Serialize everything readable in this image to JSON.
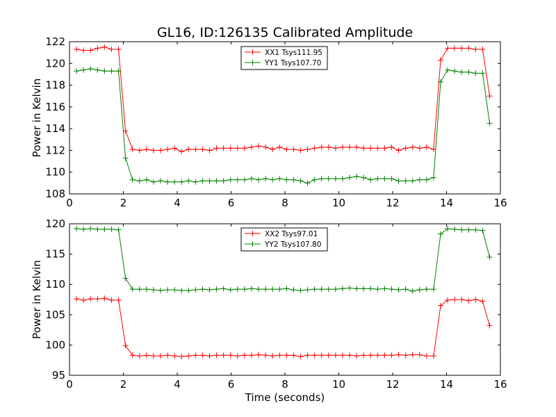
{
  "figure": {
    "title": "GL16, ID:126135 Calibrated Amplitude"
  },
  "chart_data": [
    {
      "type": "line",
      "title": "GL16, ID:126135 Calibrated Amplitude",
      "xlabel": "",
      "ylabel": "Power in Kelvin",
      "xlim": [
        0,
        16
      ],
      "ylim": [
        108,
        122
      ],
      "xticks": [
        "0",
        "2",
        "4",
        "6",
        "8",
        "10",
        "12",
        "14",
        "16"
      ],
      "yticks": [
        "108",
        "110",
        "112",
        "114",
        "116",
        "118",
        "120",
        "122"
      ],
      "grid": false,
      "legend_position": "top-center",
      "x": [
        0.26,
        0.52,
        0.78,
        1.04,
        1.3,
        1.56,
        1.82,
        2.08,
        2.34,
        2.6,
        2.86,
        3.12,
        3.38,
        3.64,
        3.9,
        4.16,
        4.42,
        4.68,
        4.94,
        5.2,
        5.46,
        5.72,
        5.98,
        6.24,
        6.5,
        6.76,
        7.02,
        7.28,
        7.54,
        7.8,
        8.06,
        8.32,
        8.58,
        8.84,
        9.1,
        9.36,
        9.62,
        9.88,
        10.14,
        10.4,
        10.66,
        10.92,
        11.18,
        11.44,
        11.7,
        11.96,
        12.22,
        12.48,
        12.74,
        13.0,
        13.26,
        13.52,
        13.78,
        14.04,
        14.3,
        14.56,
        14.82,
        15.08,
        15.34,
        15.6
      ],
      "series": [
        {
          "name": "XX1 Tsys111.95",
          "color": "#ff0000",
          "values": [
            121.3,
            121.2,
            121.2,
            121.4,
            121.5,
            121.3,
            121.3,
            113.8,
            112.1,
            112.0,
            112.1,
            112.0,
            112.0,
            112.1,
            112.2,
            111.9,
            112.1,
            112.1,
            112.1,
            112.0,
            112.2,
            112.2,
            112.2,
            112.2,
            112.2,
            112.3,
            112.4,
            112.3,
            112.1,
            112.3,
            112.1,
            112.1,
            112.0,
            112.1,
            112.2,
            112.3,
            112.3,
            112.2,
            112.3,
            112.3,
            112.3,
            112.2,
            112.2,
            112.2,
            112.2,
            112.3,
            112.0,
            112.2,
            112.3,
            112.2,
            112.3,
            112.1,
            120.3,
            121.4,
            121.4,
            121.4,
            121.4,
            121.3,
            121.3,
            117.0
          ]
        },
        {
          "name": "YY1 Tsys107.70",
          "color": "#008000",
          "values": [
            119.3,
            119.4,
            119.5,
            119.4,
            119.3,
            119.3,
            119.3,
            111.3,
            109.3,
            109.2,
            109.3,
            109.1,
            109.2,
            109.1,
            109.1,
            109.1,
            109.2,
            109.1,
            109.2,
            109.2,
            109.2,
            109.2,
            109.3,
            109.3,
            109.3,
            109.4,
            109.3,
            109.4,
            109.3,
            109.4,
            109.3,
            109.3,
            109.2,
            109.0,
            109.3,
            109.4,
            109.4,
            109.4,
            109.4,
            109.5,
            109.6,
            109.5,
            109.3,
            109.4,
            109.4,
            109.4,
            109.2,
            109.2,
            109.2,
            109.3,
            109.3,
            109.5,
            118.3,
            119.4,
            119.3,
            119.2,
            119.2,
            119.1,
            119.1,
            114.5
          ]
        }
      ]
    },
    {
      "type": "line",
      "title": "",
      "xlabel": "Time (seconds)",
      "ylabel": "Power in Kelvin",
      "xlim": [
        0,
        16
      ],
      "ylim": [
        95,
        120
      ],
      "xticks": [
        "0",
        "2",
        "4",
        "6",
        "8",
        "10",
        "12",
        "14",
        "16"
      ],
      "yticks": [
        "95",
        "100",
        "105",
        "110",
        "115",
        "120"
      ],
      "grid": false,
      "legend_position": "top-center",
      "x": [
        0.26,
        0.52,
        0.78,
        1.04,
        1.3,
        1.56,
        1.82,
        2.08,
        2.34,
        2.6,
        2.86,
        3.12,
        3.38,
        3.64,
        3.9,
        4.16,
        4.42,
        4.68,
        4.94,
        5.2,
        5.46,
        5.72,
        5.98,
        6.24,
        6.5,
        6.76,
        7.02,
        7.28,
        7.54,
        7.8,
        8.06,
        8.32,
        8.58,
        8.84,
        9.1,
        9.36,
        9.62,
        9.88,
        10.14,
        10.4,
        10.66,
        10.92,
        11.18,
        11.44,
        11.7,
        11.96,
        12.22,
        12.48,
        12.74,
        13.0,
        13.26,
        13.52,
        13.78,
        14.04,
        14.3,
        14.56,
        14.82,
        15.08,
        15.34,
        15.6
      ],
      "series": [
        {
          "name": "XX2 Tsys97.01",
          "color": "#ff0000",
          "values": [
            107.6,
            107.4,
            107.6,
            107.6,
            107.7,
            107.4,
            107.4,
            99.9,
            98.3,
            98.2,
            98.3,
            98.2,
            98.2,
            98.3,
            98.2,
            98.1,
            98.2,
            98.3,
            98.3,
            98.2,
            98.3,
            98.3,
            98.3,
            98.2,
            98.3,
            98.3,
            98.4,
            98.3,
            98.2,
            98.3,
            98.3,
            98.3,
            98.1,
            98.3,
            98.3,
            98.3,
            98.3,
            98.3,
            98.3,
            98.3,
            98.2,
            98.3,
            98.3,
            98.3,
            98.3,
            98.3,
            98.4,
            98.3,
            98.4,
            98.4,
            98.2,
            98.2,
            106.5,
            107.4,
            107.5,
            107.5,
            107.3,
            107.5,
            107.2,
            103.2
          ]
        },
        {
          "name": "YY2 Tsys107.80",
          "color": "#008000",
          "values": [
            119.2,
            119.1,
            119.2,
            119.1,
            119.1,
            119.1,
            119.0,
            111.0,
            109.2,
            109.2,
            109.2,
            109.1,
            109.0,
            109.1,
            109.1,
            109.0,
            109.0,
            109.1,
            109.2,
            109.1,
            109.2,
            109.3,
            109.1,
            109.2,
            109.2,
            109.3,
            109.2,
            109.2,
            109.2,
            109.2,
            109.3,
            109.1,
            109.0,
            109.1,
            109.2,
            109.2,
            109.2,
            109.2,
            109.3,
            109.4,
            109.3,
            109.3,
            109.3,
            109.2,
            109.3,
            109.2,
            109.1,
            109.2,
            108.9,
            109.1,
            109.2,
            109.2,
            118.3,
            119.2,
            119.1,
            119.0,
            119.0,
            119.0,
            118.9,
            114.5
          ]
        }
      ]
    }
  ]
}
